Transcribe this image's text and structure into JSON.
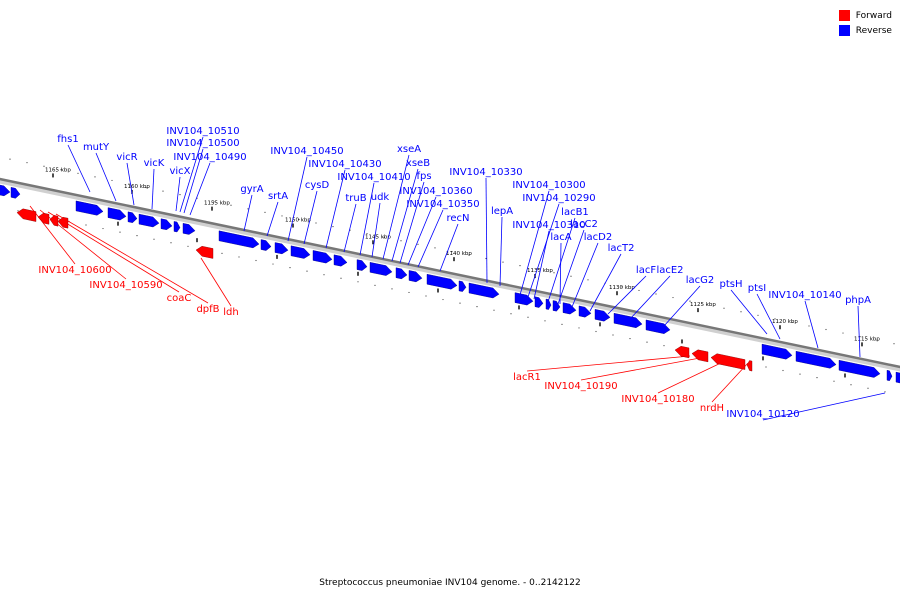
{
  "legend": {
    "forward_label": "Forward",
    "reverse_label": "Reverse",
    "forward_color": "#ff0000",
    "reverse_color": "#0000ff"
  },
  "caption": "Streptococcus pneumoniae INV104 genome. - 0..2142122",
  "ticks": [
    "1165 kbp",
    "1160 kbp",
    "1155 kbp",
    "1150 kbp",
    "1145 kbp",
    "1140 kbp",
    "1135 kbp",
    "1130 kbp",
    "1125 kbp",
    "1120 kbp",
    "1115 kbp"
  ],
  "reverse_genes": [
    "fhs1",
    "mutY",
    "vicR",
    "vicK",
    "vicX",
    "INV104_10510",
    "INV104_10500",
    "INV104_10490",
    "gyrA",
    "srtA",
    "INV104_10450",
    "cysD",
    "INV104_10430",
    "truB",
    "INV104_10410",
    "udk",
    "xseA",
    "xseB",
    "fps",
    "INV104_10360",
    "INV104_10350",
    "recN",
    "INV104_10330",
    "lepA",
    "INV104_10300",
    "INV104_10290",
    "INV104_10310",
    "lacB1",
    "lacC2",
    "lacA",
    "lacD2",
    "lacT2",
    "lacF",
    "lacE2",
    "lacG2",
    "ptsH",
    "ptsI",
    "INV104_10140",
    "phpA",
    "INV104_10120"
  ],
  "forward_genes": [
    "INV104_10600",
    "INV104_10590",
    "coaC",
    "dpfB",
    "ldh",
    "lacR1",
    "INV104_10190",
    "INV104_10180",
    "nrdH"
  ]
}
